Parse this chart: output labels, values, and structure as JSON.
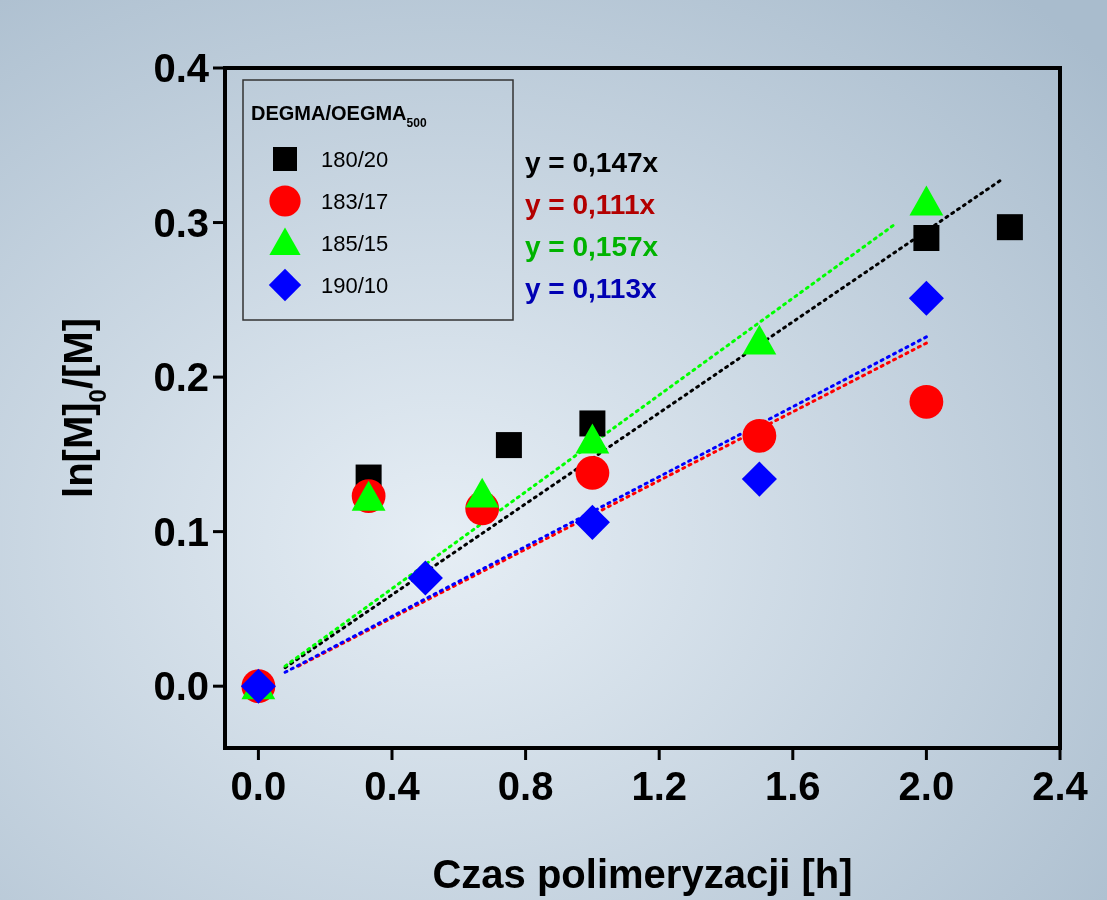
{
  "chart_data": {
    "type": "scatter",
    "xlabel": "Czas polimeryzacji [h]",
    "ylabel": "ln[M]$_{0}$/[M]",
    "legend_title": "DEGMA/OEGMA$_{500}$",
    "legend": "top left",
    "xlim": [
      -0.1,
      2.4
    ],
    "ylim": [
      -0.04,
      0.4
    ],
    "xticks": [
      {
        "value": 0,
        "label": "0.0"
      },
      0.4,
      0.8,
      1.2,
      1.6,
      {
        "value": 2,
        "label": "2.0"
      },
      2.4
    ],
    "yticks": [
      {
        "value": 0,
        "label": "0.0"
      },
      0.1,
      0.2,
      0.3,
      0.4
    ],
    "grid": false,
    "annotations": [
      "y = 0,147x",
      "y = 0,111x",
      "y = 0,157x",
      "y = 0,113x"
    ],
    "series": [
      {
        "name": "180/20",
        "color": "#000000",
        "marker": "square",
        "x": [
          0.33,
          0.75,
          1.0,
          2.0,
          2.25
        ],
        "values": [
          0.135,
          0.156,
          0.17,
          0.29,
          0.297
        ]
      },
      {
        "name": "183/17",
        "color": "#ff0000",
        "marker": "circle",
        "x": [
          0,
          0.33,
          0.67,
          1.0,
          1.5,
          2.0
        ],
        "values": [
          0,
          0.123,
          0.115,
          0.138,
          0.162,
          0.184
        ]
      },
      {
        "name": "185/15",
        "color": "#00ff00",
        "marker": "triangle",
        "x": [
          0,
          0.33,
          0.67,
          1.0,
          1.5,
          2.0
        ],
        "values": [
          0,
          0.122,
          0.124,
          0.159,
          0.223,
          0.313
        ]
      },
      {
        "name": "190/10",
        "color": "#0000ff",
        "marker": "diamond",
        "x": [
          0,
          0.5,
          1.0,
          1.5,
          2.0
        ],
        "values": [
          0,
          0.07,
          0.106,
          0.134,
          0.251
        ]
      },
      {
        "type": "line",
        "color": "#000000",
        "line_style": "dotted",
        "x": [
          0.08,
          2.22
        ],
        "values": [
          0.012,
          0.327
        ]
      },
      {
        "type": "line",
        "color": "#ff0000",
        "line_style": "dotted",
        "x": [
          0.12,
          2.0
        ],
        "values": [
          0.013,
          0.222
        ]
      },
      {
        "type": "line",
        "color": "#00ff00",
        "line_style": "dotted",
        "x": [
          0.08,
          1.9
        ],
        "values": [
          0.013,
          0.298
        ]
      },
      {
        "type": "line",
        "color": "#0000ff",
        "line_style": "dotted",
        "x": [
          0.08,
          2.0
        ],
        "values": [
          0.009,
          0.226
        ]
      }
    ]
  }
}
